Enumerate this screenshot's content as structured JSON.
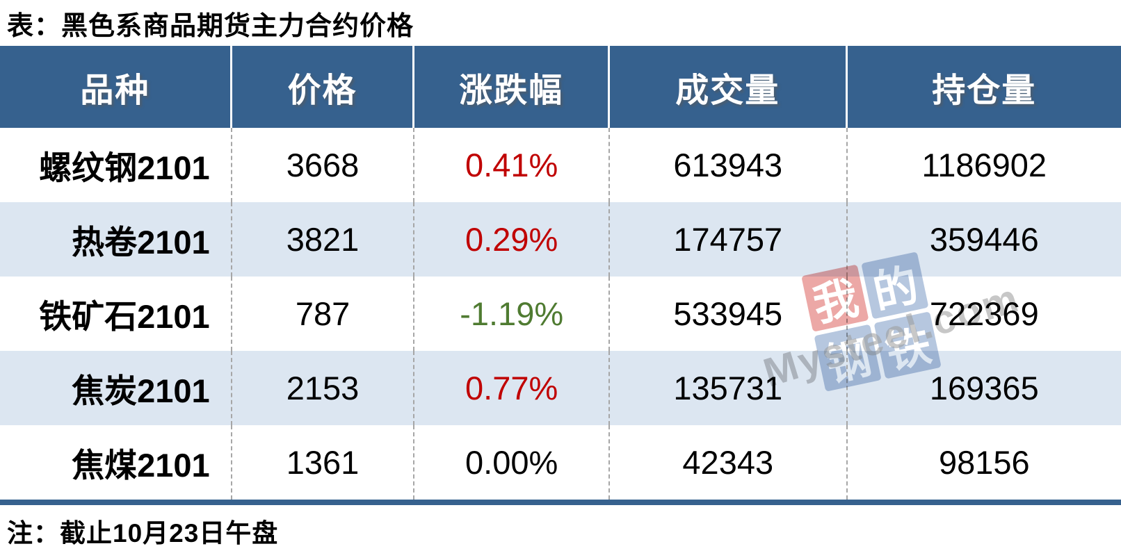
{
  "title": "表：黑色系商品期货主力合约价格",
  "note": "注：截止10月23日午盘",
  "colors": {
    "header_bg": "#36618E",
    "stripe_bg": "#DCE6F1",
    "accent_bar": "#36618E",
    "up": "#C00000",
    "down": "#4F7B31",
    "flat": "#000000",
    "divider": "#A6A6A6"
  },
  "table": {
    "columns": [
      "品种",
      "价格",
      "涨跌幅",
      "成交量",
      "持仓量"
    ],
    "rows": [
      {
        "variety": "螺纹钢2101",
        "price": "3668",
        "change": "0.41%",
        "change_color": "#C00000",
        "volume": "613943",
        "open_interest": "1186902"
      },
      {
        "variety": "热卷2101",
        "price": "3821",
        "change": "0.29%",
        "change_color": "#C00000",
        "volume": "174757",
        "open_interest": "359446"
      },
      {
        "variety": "铁矿石2101",
        "price": "787",
        "change": "-1.19%",
        "change_color": "#4F7B31",
        "volume": "533945",
        "open_interest": "722369"
      },
      {
        "variety": "焦炭2101",
        "price": "2153",
        "change": "0.77%",
        "change_color": "#C00000",
        "volume": "135731",
        "open_interest": "169365"
      },
      {
        "variety": "焦煤2101",
        "price": "1361",
        "change": "0.00%",
        "change_color": "#000000",
        "volume": "42343",
        "open_interest": "98156"
      }
    ]
  },
  "watermark": {
    "brand": "Mysteel.com",
    "squares": [
      {
        "char": "我",
        "color": "#D9534F"
      },
      {
        "char": "的",
        "color": "#6F8FC0"
      },
      {
        "char": "钢",
        "color": "#6F8FC0"
      },
      {
        "char": "铁",
        "color": "#6F8FC0"
      }
    ]
  }
}
